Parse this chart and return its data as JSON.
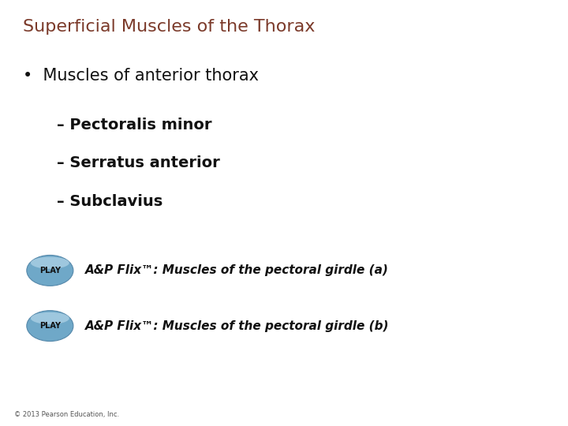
{
  "background_color": "#ffffff",
  "title": "Superficial Muscles of the Thorax",
  "title_color": "#7B3A2A",
  "title_fontsize": 16,
  "bullet_text": "Muscles of anterior thorax",
  "bullet_fontsize": 15,
  "sub_items": [
    "– Pectoralis minor",
    "– Serratus anterior",
    "– Subclavius"
  ],
  "sub_fontsize": 14,
  "play_label": "PLAY",
  "play_button_color": "#7aabcc",
  "play_button_edge": "#5588aa",
  "play_button_fontsize": 7,
  "flix_line1": "A&P Flix™: Muscles of the pectoral girdle (a)",
  "flix_line2": "A&P Flix™: Muscles of the pectoral girdle (b)",
  "flix_fontsize": 11,
  "copyright": "© 2013 Pearson Education, Inc.",
  "copyright_fontsize": 6,
  "copyright_color": "#555555"
}
